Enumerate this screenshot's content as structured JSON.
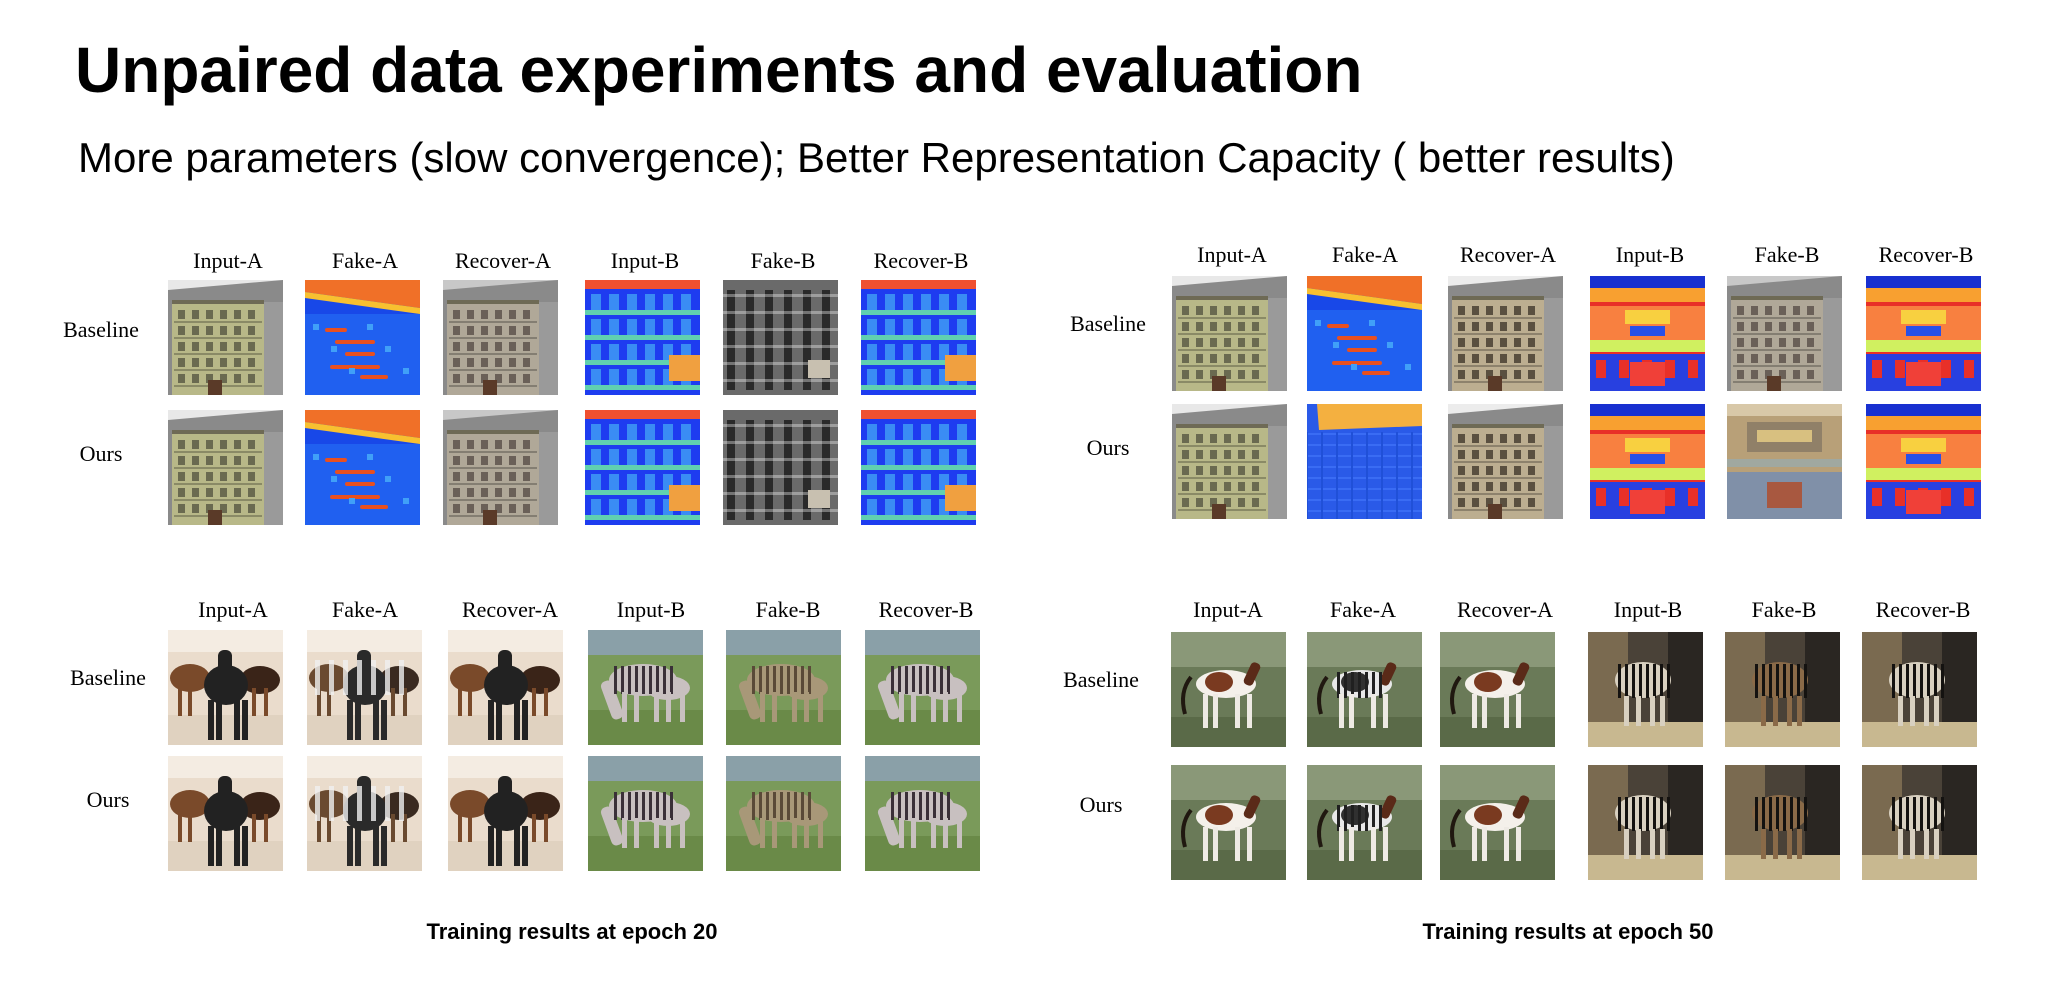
{
  "slide": {
    "title": "Unpaired data experiments and evaluation",
    "subtitle": "More parameters (slow convergence); Better Representation Capacity ( better results)"
  },
  "panels": [
    {
      "name": "epoch-20-facades",
      "columns": [
        "Input-A",
        "Fake-A",
        "Recover-A",
        "Input-B",
        "Fake-B",
        "Recover-B"
      ],
      "rows": [
        {
          "label": "Baseline",
          "images": [
            "building",
            "heatmap",
            "building-gray",
            "facade-blue",
            "building-dark",
            "facade-blue"
          ]
        },
        {
          "label": "Ours",
          "images": [
            "building",
            "heatmap",
            "building-gray",
            "facade-blue",
            "building-dark",
            "facade-blue"
          ]
        }
      ]
    },
    {
      "name": "epoch-50-facades",
      "columns": [
        "Input-A",
        "Fake-A",
        "Recover-A",
        "Input-B",
        "Fake-B",
        "Recover-B"
      ],
      "rows": [
        {
          "label": "Baseline",
          "images": [
            "building",
            "heatmap",
            "building-warm",
            "facade-red",
            "building-gray",
            "facade-red"
          ]
        },
        {
          "label": "Ours",
          "images": [
            "building",
            "blue-pattern",
            "building-warm",
            "facade-red",
            "building-tan",
            "facade-red"
          ]
        }
      ]
    },
    {
      "name": "epoch-20-horses",
      "columns": [
        "Input-A",
        "Fake-A",
        "Recover-A",
        "Input-B",
        "Fake-B",
        "Recover-B"
      ],
      "rows": [
        {
          "label": "Baseline",
          "images": [
            "horses",
            "horses-striped",
            "horses",
            "zebras-grass",
            "zebras-grass-tan",
            "zebras-grass"
          ]
        },
        {
          "label": "Ours",
          "images": [
            "horses",
            "horses-striped",
            "horses",
            "zebras-grass",
            "zebras-grass-tan",
            "zebras-grass"
          ]
        }
      ]
    },
    {
      "name": "epoch-50-horses",
      "columns": [
        "Input-A",
        "Fake-A",
        "Recover-A",
        "Input-B",
        "Fake-B",
        "Recover-B"
      ],
      "rows": [
        {
          "label": "Baseline",
          "images": [
            "foal",
            "foal-striped",
            "foal",
            "zebra-shade",
            "zebra-shade-brown",
            "zebra-shade"
          ]
        },
        {
          "label": "Ours",
          "images": [
            "foal",
            "foal-striped",
            "foal",
            "zebra-shade",
            "zebra-shade-brown",
            "zebra-shade"
          ]
        }
      ]
    }
  ],
  "captions": {
    "left": "Training results at epoch 20",
    "right": "Training results at epoch 50"
  }
}
